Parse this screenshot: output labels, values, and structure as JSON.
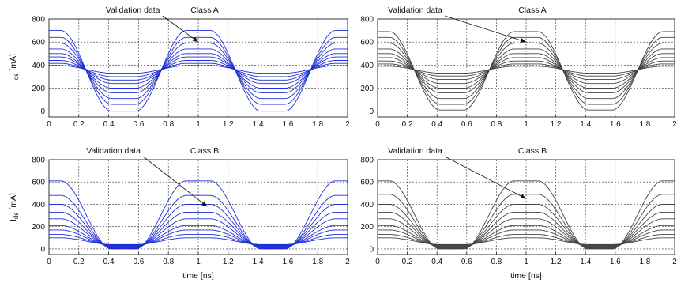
{
  "figure": {
    "panels": [
      {
        "id": "top-left",
        "title": "Class A",
        "annotation": "Validation data",
        "color": "#1f2fd6",
        "show_xlabel": false,
        "show_ylabel": true,
        "ylabel_main": "I",
        "ylabel_sub": "ds",
        "ylabel_unit": "[mA]"
      },
      {
        "id": "top-right",
        "title": "Class A",
        "annotation": "Validation data",
        "color": "#444444",
        "show_xlabel": false,
        "show_ylabel": false
      },
      {
        "id": "bottom-left",
        "title": "Class B",
        "annotation": "Validation data",
        "color": "#1f2fd6",
        "show_xlabel": true,
        "show_ylabel": true,
        "ylabel_main": "I",
        "ylabel_sub": "ds",
        "ylabel_unit": "[mA]"
      },
      {
        "id": "bottom-right",
        "title": "Class B",
        "annotation": "Validation data",
        "color": "#444444",
        "show_xlabel": true,
        "show_ylabel": false
      }
    ],
    "xlabel": "time [ns]"
  },
  "chart_data": [
    {
      "type": "line",
      "title": "Class A",
      "xlabel": "",
      "ylabel": "Ids [mA]",
      "xlim": [
        0,
        2
      ],
      "ylim": [
        -50,
        800
      ],
      "grid": true,
      "xticks": [
        "0",
        "0.2",
        "0.4",
        "0.6",
        "0.8",
        "1",
        "1.2",
        "1.4",
        "1.6",
        "1.8",
        "2"
      ],
      "yticks": [
        "0",
        "200",
        "400",
        "600",
        "800"
      ],
      "annotation": "Validation data",
      "period_ns": 1,
      "trough_center_ns": 0.5,
      "crossover_mA": 380,
      "series": [
        {
          "max": 700,
          "min": 0
        },
        {
          "max": 640,
          "min": 60
        },
        {
          "max": 590,
          "min": 110
        },
        {
          "max": 540,
          "min": 160
        },
        {
          "max": 500,
          "min": 200
        },
        {
          "max": 470,
          "min": 240
        },
        {
          "max": 440,
          "min": 270
        },
        {
          "max": 415,
          "min": 300
        },
        {
          "max": 395,
          "min": 330
        }
      ]
    },
    {
      "type": "line",
      "title": "Class A",
      "xlabel": "",
      "ylabel": "",
      "xlim": [
        0,
        2
      ],
      "ylim": [
        -50,
        800
      ],
      "grid": true,
      "xticks": [
        "0",
        "0.2",
        "0.4",
        "0.6",
        "0.8",
        "1",
        "1.2",
        "1.4",
        "1.6",
        "1.8",
        "2"
      ],
      "yticks": [
        "0",
        "200",
        "400",
        "600",
        "800"
      ],
      "annotation": "Validation data",
      "period_ns": 1,
      "trough_center_ns": 0.5,
      "crossover_mA": 380,
      "series": [
        {
          "max": 690,
          "min": 10
        },
        {
          "max": 640,
          "min": 60
        },
        {
          "max": 590,
          "min": 110
        },
        {
          "max": 540,
          "min": 160
        },
        {
          "max": 500,
          "min": 200
        },
        {
          "max": 465,
          "min": 240
        },
        {
          "max": 435,
          "min": 275
        },
        {
          "max": 410,
          "min": 305
        },
        {
          "max": 390,
          "min": 330
        }
      ]
    },
    {
      "type": "line",
      "title": "Class B",
      "xlabel": "time [ns]",
      "ylabel": "Ids [mA]",
      "xlim": [
        0,
        2
      ],
      "ylim": [
        -50,
        800
      ],
      "grid": true,
      "xticks": [
        "0",
        "0.2",
        "0.4",
        "0.6",
        "0.8",
        "1",
        "1.2",
        "1.4",
        "1.6",
        "1.8",
        "2"
      ],
      "yticks": [
        "0",
        "200",
        "400",
        "600",
        "800"
      ],
      "annotation": "Validation data",
      "period_ns": 1,
      "trough_center_ns": 0.5,
      "series": [
        {
          "max": 610,
          "min": 0
        },
        {
          "max": 480,
          "min": 5
        },
        {
          "max": 400,
          "min": 10
        },
        {
          "max": 330,
          "min": 15
        },
        {
          "max": 270,
          "min": 20
        },
        {
          "max": 210,
          "min": 25
        },
        {
          "max": 170,
          "min": 30
        },
        {
          "max": 130,
          "min": 35
        },
        {
          "max": 100,
          "min": 40
        }
      ]
    },
    {
      "type": "line",
      "title": "Class B",
      "xlabel": "time [ns]",
      "ylabel": "",
      "xlim": [
        0,
        2
      ],
      "ylim": [
        -50,
        800
      ],
      "grid": true,
      "xticks": [
        "0",
        "0.2",
        "0.4",
        "0.6",
        "0.8",
        "1",
        "1.2",
        "1.4",
        "1.6",
        "1.8",
        "2"
      ],
      "yticks": [
        "0",
        "200",
        "400",
        "600",
        "800"
      ],
      "annotation": "Validation data",
      "period_ns": 1,
      "trough_center_ns": 0.5,
      "series": [
        {
          "max": 610,
          "min": 0
        },
        {
          "max": 490,
          "min": 5
        },
        {
          "max": 400,
          "min": 10
        },
        {
          "max": 330,
          "min": 15
        },
        {
          "max": 270,
          "min": 20
        },
        {
          "max": 210,
          "min": 25
        },
        {
          "max": 170,
          "min": 30
        },
        {
          "max": 130,
          "min": 35
        },
        {
          "max": 100,
          "min": 40
        }
      ]
    }
  ]
}
